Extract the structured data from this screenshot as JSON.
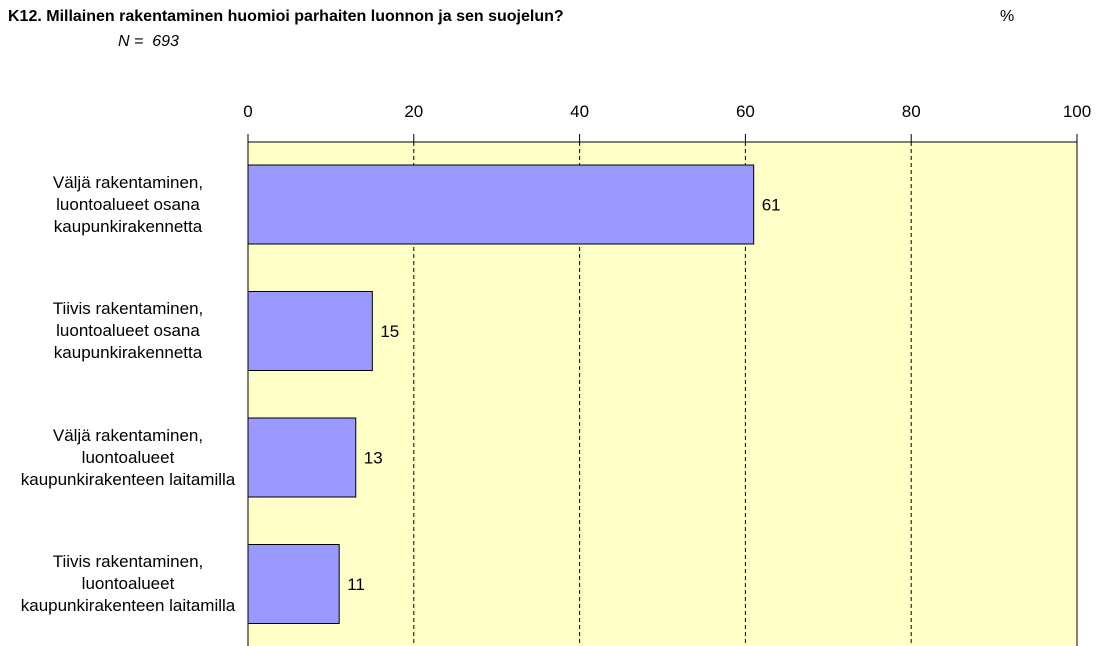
{
  "chart_data": {
    "type": "bar",
    "orientation": "horizontal",
    "title": "K12. Millainen rakentaminen huomioi parhaiten luonnon ja sen suojelun?",
    "subtitle": "N =  693",
    "unit_label": "%",
    "categories": [
      "Väljä rakentaminen, luontoalueet osana kaupunkirakennetta",
      "Tiivis rakentaminen, luontoalueet osana kaupunkirakennetta",
      "Väljä rakentaminen, luontoalueet kaupunkirakenteen laitamilla",
      "Tiivis rakentaminen, luontoalueet kaupunkirakenteen laitamilla"
    ],
    "values": [
      61,
      15,
      13,
      11
    ],
    "color": "#9999ff",
    "xlim": [
      0,
      100
    ],
    "xticks": [
      0,
      20,
      40,
      60,
      80,
      100
    ],
    "grid": true
  }
}
